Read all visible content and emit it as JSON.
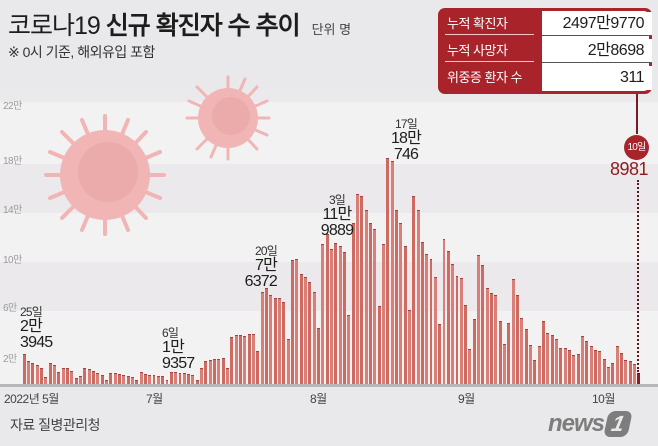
{
  "header": {
    "title_light": "코로나19 ",
    "title_bold": "신규 확진자 수 추이",
    "unit": "단위 명",
    "subtitle": "※ 0시 기준, 해외유입 포함"
  },
  "stats_box": {
    "rows": [
      {
        "label": "누적 확진자",
        "value": "2497만9770"
      },
      {
        "label": "누적 사망자",
        "value": "2만8698"
      },
      {
        "label": "위중증 환자 수",
        "value": "311"
      }
    ],
    "color": "#a9232a"
  },
  "latest": {
    "date_label": "10일",
    "value": "8981"
  },
  "annotations": [
    {
      "date": "25일",
      "value_line1": "2만",
      "value_line2": "3945"
    },
    {
      "date": "6일",
      "value_line1": "1만",
      "value_line2": "9357"
    },
    {
      "date": "20일",
      "value_line1": "7만",
      "value_line2": "6372"
    },
    {
      "date": "3일",
      "value_line1": "11만",
      "value_line2": "9889"
    },
    {
      "date": "17일",
      "value_line1": "18만",
      "value_line2": "746"
    }
  ],
  "source": "자료 질병관리청",
  "logo": {
    "text": "news",
    "badge": "1"
  },
  "colors": {
    "bar": "#cf6a63",
    "bar_latest": "#8e1b1f",
    "accent": "#a9232a",
    "background": "#e9e8ea"
  },
  "chart_data": {
    "type": "bar",
    "title": "코로나19 신규 확진자 수 추이",
    "subtitle": "※ 0시 기준, 해외유입 포함",
    "unit": "명",
    "xlabel": "",
    "ylabel": "",
    "x_range": [
      "2022-05-25",
      "2022-10-10"
    ],
    "x_tick_labels": [
      "2022년 5월",
      "7월",
      "8월",
      "9월",
      "10월"
    ],
    "y_tick_labels": [
      "2만",
      "6만",
      "10만",
      "14만",
      "18만",
      "22만"
    ],
    "y_ticks": [
      20000,
      60000,
      100000,
      140000,
      180000,
      220000
    ],
    "ylim": [
      0,
      235000
    ],
    "grid": "alternating horizontal bands",
    "annotated_points": [
      {
        "date": "2022-05-25",
        "value": 23945
      },
      {
        "date": "2022-07-06",
        "value": 19357
      },
      {
        "date": "2022-07-20",
        "value": 76372
      },
      {
        "date": "2022-08-03",
        "value": 119889
      },
      {
        "date": "2022-08-17",
        "value": 180746
      },
      {
        "date": "2022-10-10",
        "value": 8981
      }
    ],
    "values": [
      23945,
      18000,
      16500,
      15000,
      13000,
      6000,
      17000,
      15500,
      10000,
      13000,
      13000,
      10500,
      5000,
      6500,
      13000,
      12000,
      10500,
      9000,
      7000,
      3500,
      9000,
      8500,
      7700,
      7000,
      6800,
      6000,
      3500,
      9300,
      8400,
      7500,
      7200,
      6500,
      6200,
      3400,
      9900,
      9500,
      9100,
      8500,
      7800,
      7000,
      3400,
      12600,
      18100,
      19357,
      20000,
      20300,
      20400,
      12700,
      37300,
      39100,
      38800,
      38600,
      40200,
      39600,
      26300,
      73500,
      76372,
      71100,
      68600,
      68500,
      65400,
      35800,
      99300,
      100200,
      88300,
      85200,
      81900,
      73500,
      44700,
      111700,
      119889,
      107900,
      112900,
      110600,
      105400,
      55300,
      128700,
      151700,
      149900,
      138800,
      128700,
      124000,
      62000,
      111800,
      180746,
      178500,
      138800,
      128700,
      110000,
      59000,
      150200,
      139300,
      113300,
      103900,
      100000,
      85300,
      47800,
      115700,
      106300,
      96000,
      86500,
      85000,
      63000,
      28200,
      52000,
      103200,
      94800,
      76500,
      73100,
      71400,
      50000,
      32000,
      49000,
      84000,
      71000,
      53000,
      44000,
      31000,
      19000,
      30000,
      50000,
      41000,
      39000,
      36000,
      29000,
      29000,
      27000,
      23000,
      24000,
      38000,
      34000,
      30000,
      27000,
      26000,
      20000,
      14000,
      17000,
      30000,
      25000,
      19000,
      18000,
      16000,
      8981
    ]
  }
}
